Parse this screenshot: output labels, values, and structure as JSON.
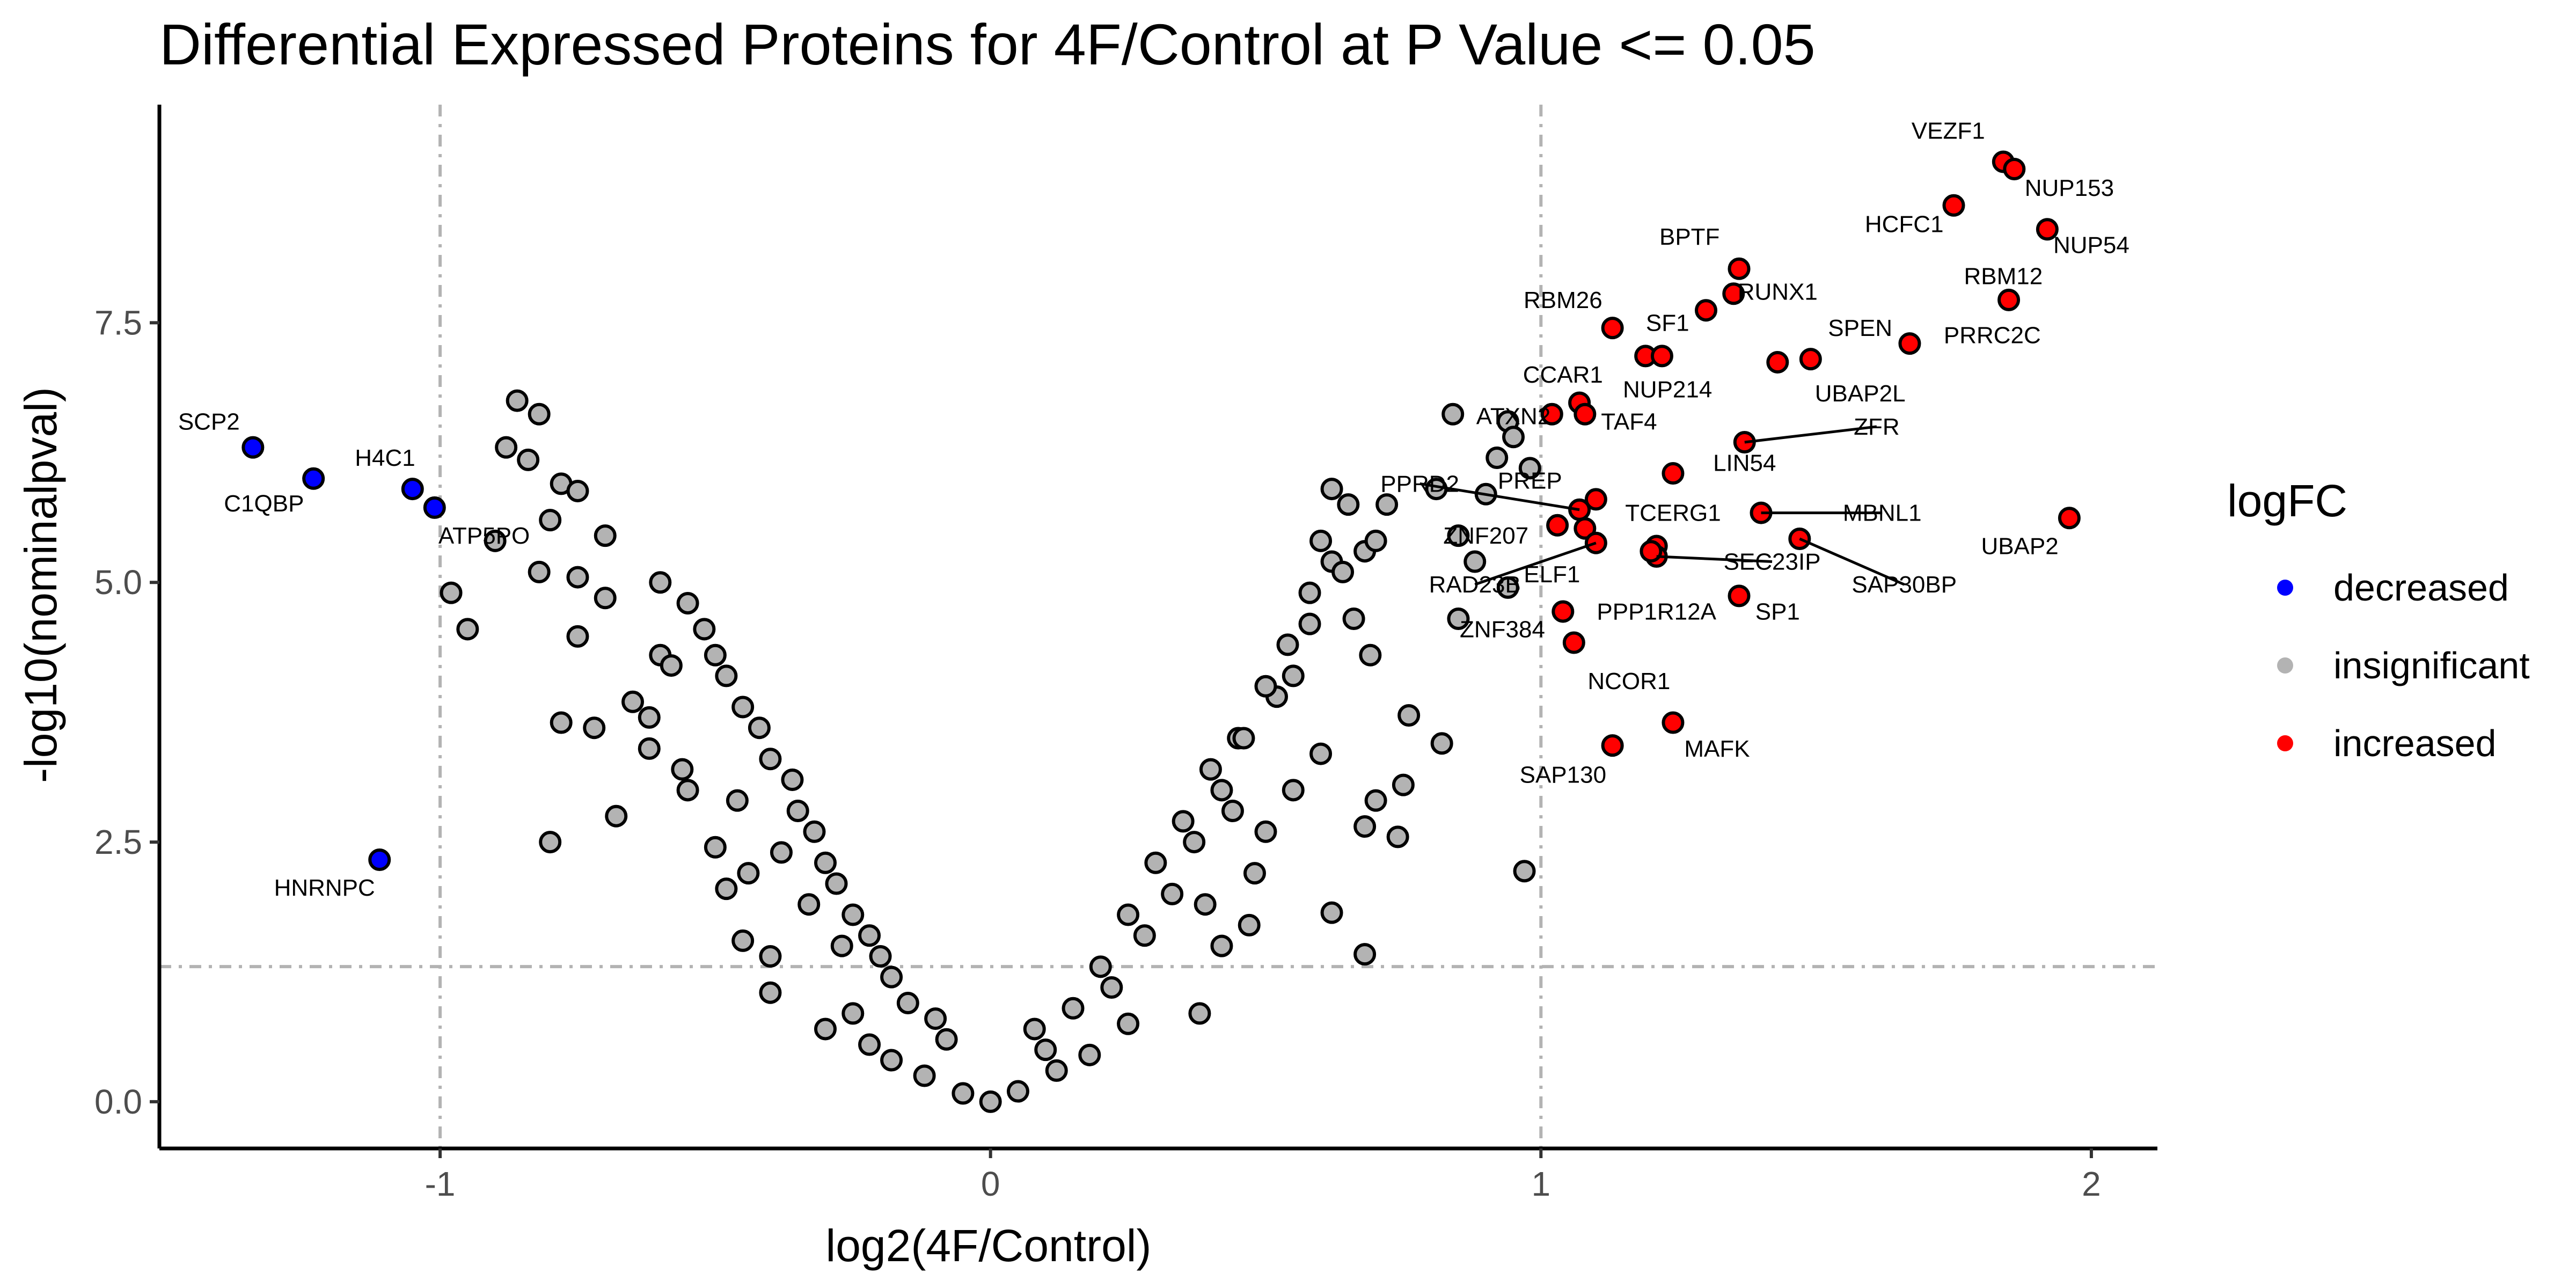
{
  "chart_data": {
    "type": "scatter",
    "title": "Differential Expressed Proteins for 4F/Control at P Value <= 0.05",
    "xlabel": "log2(4F/Control)",
    "ylabel": "-log10(nominalpval)",
    "xlim": [
      -1.51,
      2.12
    ],
    "ylim": [
      -0.45,
      9.6
    ],
    "xticks": [
      -1,
      0,
      1,
      2
    ],
    "xtick_labels": [
      "-1",
      "0",
      "1",
      "2"
    ],
    "yticks": [
      0,
      2.5,
      5,
      7.5
    ],
    "ytick_labels": [
      "0.0",
      "2.5",
      "5.0",
      "7.5"
    ],
    "grid": false,
    "thresholds": {
      "x": [
        -1,
        1
      ],
      "y": 1.301
    },
    "legend": {
      "title": "logFC",
      "placement": "right",
      "items": [
        {
          "label": "decreased",
          "color": "#0000ff"
        },
        {
          "label": "insignificant",
          "color": "#b3b3b3"
        },
        {
          "label": "increased",
          "color": "#ff0000"
        }
      ]
    },
    "series": [
      {
        "name": "decreased",
        "color": "#0000ff",
        "points": [
          {
            "label": "SCP2",
            "x": -1.34,
            "y": 6.3,
            "lx": -1.42,
            "ly": 6.55
          },
          {
            "label": "C1QBP",
            "x": -1.23,
            "y": 6.0,
            "lx": -1.32,
            "ly": 5.76
          },
          {
            "label": "H4C1",
            "x": -1.05,
            "y": 5.9,
            "lx": -1.1,
            "ly": 6.2
          },
          {
            "label": "ATP5PO",
            "x": -1.01,
            "y": 5.72,
            "lx": -0.92,
            "ly": 5.45
          },
          {
            "label": "HNRNPC",
            "x": -1.11,
            "y": 2.33,
            "lx": -1.21,
            "ly": 2.06
          }
        ]
      },
      {
        "name": "increased",
        "color": "#ff0000",
        "points": [
          {
            "label": "VEZF1",
            "x": 1.84,
            "y": 9.05,
            "lx": 1.74,
            "ly": 9.35
          },
          {
            "label": "NUP153",
            "x": 1.86,
            "y": 8.98,
            "lx": 1.96,
            "ly": 8.8
          },
          {
            "label": "HCFC1",
            "x": 1.75,
            "y": 8.63,
            "lx": 1.66,
            "ly": 8.45
          },
          {
            "label": "NUP54",
            "x": 1.92,
            "y": 8.4,
            "lx": 2.0,
            "ly": 8.25
          },
          {
            "label": "RBM12",
            "x": 1.85,
            "y": 7.72,
            "lx": 1.84,
            "ly": 7.95
          },
          {
            "label": "BPTF",
            "x": 1.36,
            "y": 8.02,
            "lx": 1.27,
            "ly": 8.33
          },
          {
            "label": "RUNX1",
            "x": 1.35,
            "y": 7.78,
            "lx": 1.43,
            "ly": 7.8
          },
          {
            "label": "RBM26",
            "x": 1.13,
            "y": 7.45,
            "lx": 1.04,
            "ly": 7.72
          },
          {
            "label": "SF1",
            "x": 1.3,
            "y": 7.62,
            "lx": 1.23,
            "ly": 7.5
          },
          {
            "label": "SPEN",
            "x": 1.49,
            "y": 7.15,
            "lx": 1.58,
            "ly": 7.45
          },
          {
            "label": "PRRC2C",
            "x": 1.67,
            "y": 7.3,
            "lx": 1.82,
            "ly": 7.38
          },
          {
            "label": "NUP214",
            "x": 1.19,
            "y": 7.18,
            "lx": 1.23,
            "ly": 6.86
          },
          {
            "label": "UBAP2L",
            "x": 1.43,
            "y": 7.12,
            "lx": 1.58,
            "ly": 6.82
          },
          {
            "label": "NUP214",
            "x": 1.22,
            "y": 7.18
          },
          {
            "label": "CCAR1",
            "x": 1.07,
            "y": 6.73,
            "lx": 1.04,
            "ly": 7.0
          },
          {
            "label": "TAF4",
            "x": 1.08,
            "y": 6.62,
            "lx": 1.16,
            "ly": 6.55
          },
          {
            "label": "ATXN2",
            "x": 1.02,
            "y": 6.62,
            "lx": 0.95,
            "ly": 6.6
          },
          {
            "label": "ZFR",
            "x": 1.37,
            "y": 6.35,
            "lx": 1.61,
            "ly": 6.5
          },
          {
            "label": "LIN54",
            "x": 1.24,
            "y": 6.05,
            "lx": 1.37,
            "ly": 6.15
          },
          {
            "label": "PPRD2",
            "x": 1.07,
            "y": 5.7,
            "lx": 0.78,
            "ly": 5.95
          },
          {
            "label": "PREP",
            "x": 1.1,
            "y": 5.8,
            "lx": 0.98,
            "ly": 5.98
          },
          {
            "label": "MBNL1",
            "x": 1.4,
            "y": 5.67,
            "lx": 1.62,
            "ly": 5.67
          },
          {
            "label": "UBAP2",
            "x": 1.96,
            "y": 5.62,
            "lx": 1.87,
            "ly": 5.35
          },
          {
            "label": "TCERG1",
            "x": 1.21,
            "y": 5.35,
            "lx": 1.24,
            "ly": 5.67
          },
          {
            "label": "ZNF207",
            "x": 1.03,
            "y": 5.55,
            "lx": 0.9,
            "ly": 5.45
          },
          {
            "label": "ELF1",
            "x": 1.08,
            "y": 5.52,
            "lx": 1.02,
            "ly": 5.08
          },
          {
            "label": "RAD23B",
            "x": 1.1,
            "y": 5.38,
            "lx": 0.88,
            "ly": 4.98
          },
          {
            "label": "SEC23IP",
            "x": 1.21,
            "y": 5.25,
            "lx": 1.42,
            "ly": 5.2
          },
          {
            "label": "SAP30BP",
            "x": 1.47,
            "y": 5.42,
            "lx": 1.66,
            "ly": 4.98
          },
          {
            "label": "PPP1R12A",
            "x": 1.2,
            "y": 5.3,
            "lx": 1.21,
            "ly": 4.72
          },
          {
            "label": "SP1",
            "x": 1.36,
            "y": 4.87,
            "lx": 1.43,
            "ly": 4.72
          },
          {
            "label": "ZNF384",
            "x": 1.04,
            "y": 4.72,
            "lx": 0.93,
            "ly": 4.55
          },
          {
            "label": "NCOR1",
            "x": 1.06,
            "y": 4.42,
            "lx": 1.16,
            "ly": 4.05
          },
          {
            "label": "MAFK",
            "x": 1.24,
            "y": 3.65,
            "lx": 1.32,
            "ly": 3.4
          },
          {
            "label": "SAP130",
            "x": 1.13,
            "y": 3.43,
            "lx": 1.04,
            "ly": 3.15
          }
        ]
      },
      {
        "name": "insignificant",
        "color": "#b3b3b3",
        "points": [
          {
            "x": -0.86,
            "y": 6.75
          },
          {
            "x": -0.82,
            "y": 6.62
          },
          {
            "x": -0.88,
            "y": 6.3
          },
          {
            "x": -0.84,
            "y": 6.18
          },
          {
            "x": -0.78,
            "y": 5.95
          },
          {
            "x": -0.75,
            "y": 5.88
          },
          {
            "x": -0.8,
            "y": 5.6
          },
          {
            "x": -0.7,
            "y": 5.45
          },
          {
            "x": -0.82,
            "y": 5.1
          },
          {
            "x": -0.75,
            "y": 5.05
          },
          {
            "x": -0.7,
            "y": 4.85
          },
          {
            "x": -0.75,
            "y": 4.48
          },
          {
            "x": -0.6,
            "y": 4.3
          },
          {
            "x": -0.78,
            "y": 3.65
          },
          {
            "x": -0.72,
            "y": 3.6
          },
          {
            "x": -0.68,
            "y": 2.75
          },
          {
            "x": -0.8,
            "y": 2.5
          },
          {
            "x": -0.9,
            "y": 5.4
          },
          {
            "x": -0.98,
            "y": 4.9
          },
          {
            "x": -0.95,
            "y": 4.55
          },
          {
            "x": -0.65,
            "y": 3.85
          },
          {
            "x": -0.62,
            "y": 3.4
          },
          {
            "x": -0.55,
            "y": 3.0
          },
          {
            "x": -0.5,
            "y": 2.45
          },
          {
            "x": -0.48,
            "y": 2.05
          },
          {
            "x": -0.45,
            "y": 1.55
          },
          {
            "x": -0.4,
            "y": 1.4
          },
          {
            "x": -0.4,
            "y": 1.05
          },
          {
            "x": -0.3,
            "y": 0.7
          },
          {
            "x": -0.25,
            "y": 0.85
          },
          {
            "x": -0.22,
            "y": 0.55
          },
          {
            "x": -0.18,
            "y": 0.4
          },
          {
            "x": -0.12,
            "y": 0.25
          },
          {
            "x": -0.05,
            "y": 0.08
          },
          {
            "x": 0.0,
            "y": 0.0
          },
          {
            "x": 0.05,
            "y": 0.1
          },
          {
            "x": 0.12,
            "y": 0.3
          },
          {
            "x": 0.18,
            "y": 0.45
          },
          {
            "x": 0.25,
            "y": 0.75
          },
          {
            "x": 0.38,
            "y": 0.85
          },
          {
            "x": 0.42,
            "y": 1.5
          },
          {
            "x": 0.48,
            "y": 2.2
          },
          {
            "x": 0.5,
            "y": 2.6
          },
          {
            "x": 0.55,
            "y": 3.0
          },
          {
            "x": 0.6,
            "y": 3.35
          },
          {
            "x": 0.62,
            "y": 1.82
          },
          {
            "x": 0.68,
            "y": 1.42
          },
          {
            "x": 0.7,
            "y": 2.9
          },
          {
            "x": 0.75,
            "y": 3.05
          },
          {
            "x": 0.68,
            "y": 2.65
          },
          {
            "x": 0.74,
            "y": 2.55
          },
          {
            "x": 0.76,
            "y": 3.72
          },
          {
            "x": 0.82,
            "y": 3.45
          },
          {
            "x": 0.69,
            "y": 4.3
          },
          {
            "x": 0.62,
            "y": 5.2
          },
          {
            "x": 0.68,
            "y": 5.3
          },
          {
            "x": 0.65,
            "y": 5.75
          },
          {
            "x": 0.62,
            "y": 5.9
          },
          {
            "x": 0.72,
            "y": 5.75
          },
          {
            "x": 0.7,
            "y": 5.4
          },
          {
            "x": 0.66,
            "y": 4.65
          },
          {
            "x": 0.84,
            "y": 6.62
          },
          {
            "x": 0.94,
            "y": 6.55
          },
          {
            "x": 0.92,
            "y": 6.2
          },
          {
            "x": 0.95,
            "y": 6.4
          },
          {
            "x": 0.98,
            "y": 6.1
          },
          {
            "x": 0.81,
            "y": 5.9
          },
          {
            "x": 0.9,
            "y": 5.85
          },
          {
            "x": 0.88,
            "y": 5.2
          },
          {
            "x": 0.85,
            "y": 5.45
          },
          {
            "x": 0.85,
            "y": 4.65
          },
          {
            "x": 0.94,
            "y": 4.95
          },
          {
            "x": 0.97,
            "y": 2.22
          },
          {
            "x": 0.58,
            "y": 4.6
          },
          {
            "x": 0.55,
            "y": 4.1
          },
          {
            "x": 0.52,
            "y": 3.9
          },
          {
            "x": 0.45,
            "y": 3.5
          },
          {
            "x": 0.4,
            "y": 3.2
          },
          {
            "x": 0.35,
            "y": 2.7
          },
          {
            "x": 0.3,
            "y": 2.3
          },
          {
            "x": 0.25,
            "y": 1.8
          },
          {
            "x": 0.2,
            "y": 1.3
          },
          {
            "x": 0.15,
            "y": 0.9
          },
          {
            "x": 0.1,
            "y": 0.5
          },
          {
            "x": 0.08,
            "y": 0.7
          },
          {
            "x": -0.08,
            "y": 0.6
          },
          {
            "x": -0.15,
            "y": 0.95
          },
          {
            "x": -0.2,
            "y": 1.4
          },
          {
            "x": -0.25,
            "y": 1.8
          },
          {
            "x": -0.3,
            "y": 2.3
          },
          {
            "x": -0.35,
            "y": 2.8
          },
          {
            "x": -0.4,
            "y": 3.3
          },
          {
            "x": -0.45,
            "y": 3.8
          },
          {
            "x": -0.5,
            "y": 4.3
          },
          {
            "x": -0.55,
            "y": 4.8
          },
          {
            "x": -0.6,
            "y": 5.0
          },
          {
            "x": -0.52,
            "y": 4.55
          },
          {
            "x": -0.48,
            "y": 4.1
          },
          {
            "x": -0.42,
            "y": 3.6
          },
          {
            "x": -0.36,
            "y": 3.1
          },
          {
            "x": -0.32,
            "y": 2.6
          },
          {
            "x": -0.28,
            "y": 2.1
          },
          {
            "x": -0.22,
            "y": 1.6
          },
          {
            "x": -0.18,
            "y": 1.2
          },
          {
            "x": -0.1,
            "y": 0.8
          },
          {
            "x": 0.22,
            "y": 1.1
          },
          {
            "x": 0.28,
            "y": 1.6
          },
          {
            "x": 0.33,
            "y": 2.0
          },
          {
            "x": 0.37,
            "y": 2.5
          },
          {
            "x": 0.42,
            "y": 3.0
          },
          {
            "x": 0.46,
            "y": 3.5
          },
          {
            "x": 0.5,
            "y": 4.0
          },
          {
            "x": 0.54,
            "y": 4.4
          },
          {
            "x": 0.58,
            "y": 4.9
          },
          {
            "x": 0.6,
            "y": 5.4
          },
          {
            "x": 0.64,
            "y": 5.1
          },
          {
            "x": 0.44,
            "y": 2.8
          },
          {
            "x": 0.39,
            "y": 1.9
          },
          {
            "x": 0.47,
            "y": 1.7
          },
          {
            "x": -0.58,
            "y": 4.2
          },
          {
            "x": -0.62,
            "y": 3.7
          },
          {
            "x": -0.56,
            "y": 3.2
          },
          {
            "x": -0.46,
            "y": 2.9
          },
          {
            "x": -0.38,
            "y": 2.4
          },
          {
            "x": -0.33,
            "y": 1.9
          },
          {
            "x": -0.27,
            "y": 1.5
          },
          {
            "x": -0.44,
            "y": 2.2
          }
        ]
      }
    ]
  }
}
